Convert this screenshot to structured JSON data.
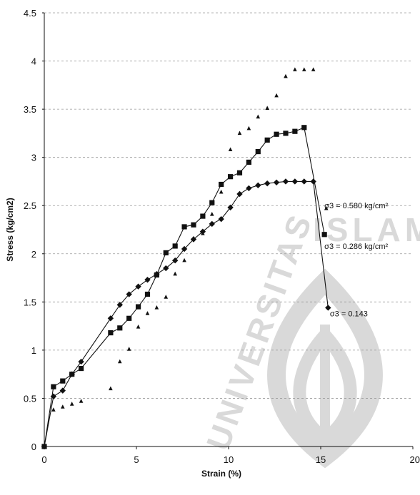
{
  "watermark": {
    "text_islam": "ISLAM",
    "text_universitas": "UNIVERSITAS",
    "color": "#d9d9d9"
  },
  "chart_data": {
    "type": "line",
    "title": "",
    "xlabel": "Strain (%)",
    "ylabel": "Stress (kg/cm2)",
    "xlim": [
      0,
      20
    ],
    "ylim": [
      0,
      4.5
    ],
    "x_ticks": [
      "0",
      "5",
      "10",
      "15",
      "20"
    ],
    "y_ticks": [
      "0",
      "0.5",
      "1",
      "1.5",
      "2",
      "2.5",
      "3",
      "3.5",
      "4",
      "4.5"
    ],
    "grid": "horizontal-dashed",
    "legend": "none",
    "series": [
      {
        "marker": "diamond",
        "line": true,
        "color": "#111111",
        "label": "σ3 = 0.143",
        "label_pos": [
          15.5,
          1.38
        ],
        "points": [
          [
            0,
            0
          ],
          [
            0.5,
            0.52
          ],
          [
            1,
            0.58
          ],
          [
            1.5,
            0.75
          ],
          [
            2,
            0.88
          ],
          [
            3.6,
            1.33
          ],
          [
            4.1,
            1.47
          ],
          [
            4.6,
            1.58
          ],
          [
            5.1,
            1.66
          ],
          [
            5.6,
            1.73
          ],
          [
            6.1,
            1.79
          ],
          [
            6.6,
            1.85
          ],
          [
            7.1,
            1.93
          ],
          [
            7.6,
            2.05
          ],
          [
            8.1,
            2.15
          ],
          [
            8.6,
            2.23
          ],
          [
            9.1,
            2.31
          ],
          [
            9.6,
            2.36
          ],
          [
            10.1,
            2.48
          ],
          [
            10.6,
            2.62
          ],
          [
            11.1,
            2.68
          ],
          [
            11.6,
            2.71
          ],
          [
            12.1,
            2.73
          ],
          [
            12.6,
            2.74
          ],
          [
            13.1,
            2.75
          ],
          [
            13.6,
            2.75
          ],
          [
            14.1,
            2.75
          ],
          [
            14.6,
            2.75
          ],
          [
            15.4,
            1.44
          ]
        ]
      },
      {
        "marker": "square",
        "line": true,
        "color": "#111111",
        "label": "σ3 = 0.286 kg/cm²",
        "label_pos": [
          15.2,
          2.08
        ],
        "points": [
          [
            0,
            0
          ],
          [
            0.5,
            0.62
          ],
          [
            1,
            0.68
          ],
          [
            1.5,
            0.75
          ],
          [
            2,
            0.81
          ],
          [
            3.6,
            1.18
          ],
          [
            4.1,
            1.23
          ],
          [
            4.6,
            1.33
          ],
          [
            5.1,
            1.45
          ],
          [
            5.6,
            1.58
          ],
          [
            6.1,
            1.78
          ],
          [
            6.6,
            2.01
          ],
          [
            7.1,
            2.08
          ],
          [
            7.6,
            2.28
          ],
          [
            8.1,
            2.3
          ],
          [
            8.6,
            2.39
          ],
          [
            9.1,
            2.53
          ],
          [
            9.6,
            2.72
          ],
          [
            10.1,
            2.8
          ],
          [
            10.6,
            2.84
          ],
          [
            11.1,
            2.95
          ],
          [
            11.6,
            3.06
          ],
          [
            12.1,
            3.18
          ],
          [
            12.6,
            3.24
          ],
          [
            13.1,
            3.25
          ],
          [
            13.6,
            3.27
          ],
          [
            14.1,
            3.31
          ],
          [
            15.2,
            2.2
          ]
        ]
      },
      {
        "marker": "triangle",
        "line": false,
        "color": "#111111",
        "label": "σ3 = 0.580 kg/cm²",
        "label_pos": [
          15.2,
          2.5
        ],
        "points": [
          [
            0,
            0
          ],
          [
            0.5,
            0.38
          ],
          [
            1,
            0.41
          ],
          [
            1.5,
            0.44
          ],
          [
            2,
            0.47
          ],
          [
            3.6,
            0.6
          ],
          [
            4.1,
            0.88
          ],
          [
            4.6,
            1.01
          ],
          [
            5.1,
            1.24
          ],
          [
            5.6,
            1.38
          ],
          [
            6.1,
            1.44
          ],
          [
            6.6,
            1.55
          ],
          [
            7.1,
            1.79
          ],
          [
            7.6,
            1.93
          ],
          [
            8.1,
            2.16
          ],
          [
            8.6,
            2.21
          ],
          [
            9.1,
            2.41
          ],
          [
            9.6,
            2.64
          ],
          [
            10.1,
            3.08
          ],
          [
            10.6,
            3.25
          ],
          [
            11.1,
            3.3
          ],
          [
            11.6,
            3.42
          ],
          [
            12.1,
            3.51
          ],
          [
            12.6,
            3.64
          ],
          [
            13.1,
            3.84
          ],
          [
            13.6,
            3.91
          ],
          [
            14.1,
            3.91
          ],
          [
            14.6,
            3.91
          ],
          [
            15.3,
            2.47
          ]
        ]
      }
    ]
  }
}
